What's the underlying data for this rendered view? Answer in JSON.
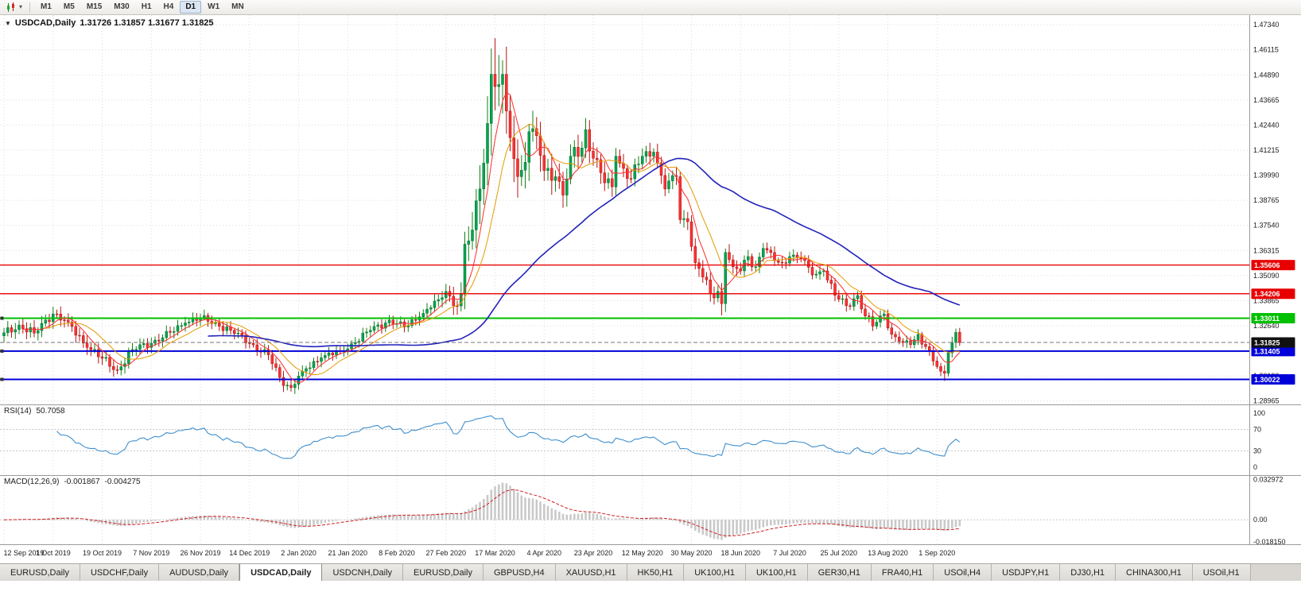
{
  "icons": {
    "caret_down": "▼",
    "caret_small": "▾"
  },
  "toolbar": {
    "timeframes": [
      {
        "label": "M1",
        "active": false
      },
      {
        "label": "M5",
        "active": false
      },
      {
        "label": "M15",
        "active": false
      },
      {
        "label": "M30",
        "active": false
      },
      {
        "label": "H1",
        "active": false
      },
      {
        "label": "H4",
        "active": false
      },
      {
        "label": "D1",
        "active": true
      },
      {
        "label": "W1",
        "active": false
      },
      {
        "label": "MN",
        "active": false
      }
    ]
  },
  "chart": {
    "symbol_label": "USDCAD,Daily",
    "quotes": "1.31726 1.31857 1.31677 1.31825"
  },
  "rsi": {
    "label": "RSI(14)",
    "value": "50.7058",
    "axis": [
      "100",
      "70",
      "30",
      "0"
    ]
  },
  "macd": {
    "label": "MACD(12,26,9)",
    "value_main": "-0.001867",
    "value_signal": "-0.004275",
    "axis": [
      {
        "t": "0.032972",
        "v": 0.032972
      },
      {
        "t": "0.00",
        "v": 0
      },
      {
        "t": "-0.018150",
        "v": -0.01815
      }
    ]
  },
  "price_axis": {
    "values": [
      "1.47340",
      "1.46115",
      "1.44890",
      "1.43665",
      "1.42440",
      "1.41215",
      "1.39990",
      "1.38765",
      "1.37540",
      "1.36315",
      "1.35090",
      "1.33865",
      "1.32640",
      "1.31415",
      "1.30190",
      "1.28965"
    ]
  },
  "levels": [
    {
      "t": "1.35606",
      "v": 1.35606,
      "color": "#e80000",
      "w": 1.4,
      "handle": false
    },
    {
      "t": "1.34206",
      "v": 1.34206,
      "color": "#e80000",
      "w": 1.4,
      "handle": false
    },
    {
      "t": "1.33011",
      "v": 1.33011,
      "color": "#00c000",
      "w": 2,
      "handle": true
    },
    {
      "t": "1.31405",
      "v": 1.31405,
      "color": "#0000d8",
      "w": 2,
      "handle": true
    },
    {
      "t": "1.30022",
      "v": 1.30022,
      "color": "#0000d8",
      "w": 2,
      "handle": true
    }
  ],
  "current_price": {
    "t": "1.31825",
    "v": 1.31825,
    "badge": "#111111"
  },
  "date_axis": {
    "labels": [
      "12 Sep 2019",
      "1 Oct 2019",
      "19 Oct 2019",
      "7 Nov 2019",
      "26 Nov 2019",
      "14 Dec 2019",
      "2 Jan 2020",
      "21 Jan 2020",
      "8 Feb 2020",
      "27 Feb 2020",
      "17 Mar 2020",
      "4 Apr 2020",
      "23 Apr 2020",
      "12 May 2020",
      "30 May 2020",
      "18 Jun 2020",
      "7 Jul 2020",
      "25 Jul 2020",
      "13 Aug 2020",
      "1 Sep 2020"
    ]
  },
  "tabs": {
    "items": [
      {
        "label": "EURUSD,Daily",
        "active": false
      },
      {
        "label": "USDCHF,Daily",
        "active": false
      },
      {
        "label": "AUDUSD,Daily",
        "active": false
      },
      {
        "label": "USDCAD,Daily",
        "active": true
      },
      {
        "label": "USDCNH,Daily",
        "active": false
      },
      {
        "label": "EURUSD,Daily",
        "active": false
      },
      {
        "label": "GBPUSD,H4",
        "active": false
      },
      {
        "label": "XAUUSD,H1",
        "active": false
      },
      {
        "label": "HK50,H1",
        "active": false
      },
      {
        "label": "UK100,H1",
        "active": false
      },
      {
        "label": "UK100,H1",
        "active": false
      },
      {
        "label": "GER30,H1",
        "active": false
      },
      {
        "label": "FRA40,H1",
        "active": false
      },
      {
        "label": "USOil,H4",
        "active": false
      },
      {
        "label": "USDJPY,H1",
        "active": false
      },
      {
        "label": "DJ30,H1",
        "active": false
      },
      {
        "label": "CHINA300,H1",
        "active": false
      },
      {
        "label": "USOil,H1",
        "active": false
      }
    ]
  },
  "chart_data": {
    "type": "candlestick",
    "symbol": "USDCAD",
    "timeframe": "Daily",
    "visible_date_range": [
      "12 Sep 2019",
      "9 Sep 2020"
    ],
    "price_range": [
      1.288,
      1.4781
    ],
    "n": 254,
    "anchors": [
      [
        0,
        1.323,
        0.0045
      ],
      [
        4,
        1.3268,
        0.0045
      ],
      [
        8,
        1.3228,
        0.0048
      ],
      [
        13,
        1.3322,
        0.005
      ],
      [
        17,
        1.3282,
        0.0048
      ],
      [
        22,
        1.3158,
        0.005
      ],
      [
        26,
        1.3105,
        0.0046
      ],
      [
        30,
        1.3048,
        0.0046
      ],
      [
        34,
        1.3148,
        0.0044
      ],
      [
        39,
        1.3178,
        0.0042
      ],
      [
        44,
        1.3232,
        0.004
      ],
      [
        48,
        1.3278,
        0.004
      ],
      [
        52,
        1.3302,
        0.004
      ],
      [
        56,
        1.3278,
        0.0038
      ],
      [
        60,
        1.3242,
        0.0038
      ],
      [
        65,
        1.3178,
        0.0038
      ],
      [
        70,
        1.3122,
        0.004
      ],
      [
        73,
        1.3012,
        0.0042
      ],
      [
        76,
        1.2962,
        0.0042
      ],
      [
        79,
        1.3042,
        0.004
      ],
      [
        84,
        1.3108,
        0.0038
      ],
      [
        89,
        1.3142,
        0.0038
      ],
      [
        93,
        1.3182,
        0.0036
      ],
      [
        97,
        1.3242,
        0.0036
      ],
      [
        102,
        1.3292,
        0.0036
      ],
      [
        106,
        1.3258,
        0.0036
      ],
      [
        110,
        1.3308,
        0.0038
      ],
      [
        113,
        1.3352,
        0.0042
      ],
      [
        115,
        1.3392,
        0.0048
      ],
      [
        117,
        1.3432,
        0.0055
      ],
      [
        119,
        1.3362,
        0.0062
      ],
      [
        121,
        1.3422,
        0.0075
      ],
      [
        122,
        1.3662,
        0.011
      ],
      [
        124,
        1.3732,
        0.0125
      ],
      [
        126,
        1.3932,
        0.0155
      ],
      [
        128,
        1.4252,
        0.019
      ],
      [
        129,
        1.4492,
        0.021
      ],
      [
        130,
        1.4432,
        0.0215
      ],
      [
        131,
        1.4442,
        0.02
      ],
      [
        132,
        1.4492,
        0.019
      ],
      [
        134,
        1.4182,
        0.017
      ],
      [
        136,
        1.3992,
        0.015
      ],
      [
        138,
        1.4062,
        0.0135
      ],
      [
        139,
        1.4212,
        0.0125
      ],
      [
        141,
        1.4192,
        0.0112
      ],
      [
        143,
        1.4022,
        0.01
      ],
      [
        146,
        1.3992,
        0.0092
      ],
      [
        148,
        1.3902,
        0.0086
      ],
      [
        150,
        1.4092,
        0.0084
      ],
      [
        153,
        1.4132,
        0.008
      ],
      [
        154,
        1.4222,
        0.008
      ],
      [
        156,
        1.4082,
        0.0076
      ],
      [
        159,
        1.3962,
        0.007
      ],
      [
        161,
        1.3942,
        0.0066
      ],
      [
        162,
        1.4092,
        0.0064
      ],
      [
        164,
        1.4032,
        0.0062
      ],
      [
        166,
        1.3982,
        0.006
      ],
      [
        169,
        1.4092,
        0.0058
      ],
      [
        172,
        1.4112,
        0.0056
      ],
      [
        175,
        1.3932,
        0.0056
      ],
      [
        178,
        1.3992,
        0.0058
      ],
      [
        179,
        1.3782,
        0.0062
      ],
      [
        181,
        1.3772,
        0.0056
      ],
      [
        183,
        1.3572,
        0.0056
      ],
      [
        185,
        1.3502,
        0.0054
      ],
      [
        187,
        1.3422,
        0.0054
      ],
      [
        189,
        1.3432,
        0.0052
      ],
      [
        190,
        1.3372,
        0.0056
      ],
      [
        191,
        1.3622,
        0.006
      ],
      [
        193,
        1.3552,
        0.005
      ],
      [
        195,
        1.3532,
        0.0046
      ],
      [
        197,
        1.3602,
        0.0044
      ],
      [
        199,
        1.3552,
        0.0042
      ],
      [
        201,
        1.3642,
        0.0042
      ],
      [
        204,
        1.3582,
        0.004
      ],
      [
        206,
        1.3572,
        0.004
      ],
      [
        208,
        1.3602,
        0.004
      ],
      [
        211,
        1.3592,
        0.0038
      ],
      [
        214,
        1.3512,
        0.0038
      ],
      [
        217,
        1.3532,
        0.0038
      ],
      [
        220,
        1.3412,
        0.004
      ],
      [
        223,
        1.3362,
        0.004
      ],
      [
        226,
        1.3412,
        0.0038
      ],
      [
        228,
        1.3312,
        0.0038
      ],
      [
        230,
        1.3262,
        0.0038
      ],
      [
        233,
        1.3322,
        0.0036
      ],
      [
        235,
        1.3222,
        0.0036
      ],
      [
        238,
        1.3182,
        0.0036
      ],
      [
        240,
        1.3172,
        0.0034
      ],
      [
        242,
        1.3222,
        0.0034
      ],
      [
        244,
        1.3162,
        0.0034
      ],
      [
        246,
        1.3092,
        0.0034
      ],
      [
        248,
        1.3042,
        0.0036
      ],
      [
        249,
        1.3032,
        0.004
      ],
      [
        250,
        1.3132,
        0.004
      ],
      [
        252,
        1.3232,
        0.0036
      ],
      [
        253,
        1.31825,
        0.0034
      ]
    ],
    "extremes": [
      {
        "i": 13,
        "h": 1.3348
      },
      {
        "i": 76,
        "l": 1.2952
      },
      {
        "i": 122,
        "h": 1.369
      },
      {
        "i": 128,
        "h": 1.4349
      },
      {
        "i": 129,
        "h": 1.456
      },
      {
        "i": 130,
        "h": 1.4668
      },
      {
        "i": 154,
        "h": 1.4265
      },
      {
        "i": 190,
        "l": 1.3315
      },
      {
        "i": 249,
        "l": 1.2995
      }
    ],
    "moving_averages": [
      {
        "period": 6,
        "color": "#ff2a2a",
        "width": 1
      },
      {
        "period": 12,
        "color": "#e49a00",
        "width": 1
      },
      {
        "period": 55,
        "color": "#2222bb",
        "width": 1.6
      }
    ],
    "horizontal_levels": [
      1.35606,
      1.34206,
      1.33011,
      1.31405,
      1.30022
    ],
    "current_price": 1.31825,
    "indicators": {
      "rsi": {
        "period": 14,
        "current": 50.7058,
        "scale": [
          0,
          100
        ],
        "levels": [
          30,
          70
        ]
      },
      "macd": {
        "fast": 12,
        "slow": 26,
        "signal": 9,
        "current_main": -0.001867,
        "current_signal": -0.004275,
        "scale_max": 0.032972,
        "scale_min": -0.01815
      }
    }
  }
}
